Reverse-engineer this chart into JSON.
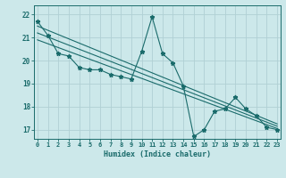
{
  "title": "",
  "xlabel": "Humidex (Indice chaleur)",
  "ylabel": "",
  "background_color": "#cce8ea",
  "grid_color": "#b0d0d4",
  "line_color": "#1a6b6b",
  "x_ticks": [
    0,
    1,
    2,
    3,
    4,
    5,
    6,
    7,
    8,
    9,
    10,
    11,
    12,
    13,
    14,
    15,
    16,
    17,
    18,
    19,
    20,
    21,
    22,
    23
  ],
  "y_ticks": [
    17,
    18,
    19,
    20,
    21,
    22
  ],
  "ylim": [
    16.6,
    22.4
  ],
  "xlim": [
    -0.3,
    23.3
  ],
  "series1": [
    21.7,
    21.1,
    20.3,
    20.2,
    19.7,
    19.6,
    19.6,
    19.4,
    19.3,
    19.2,
    20.4,
    21.9,
    20.3,
    19.9,
    18.9,
    16.7,
    17.0,
    17.8,
    17.9,
    18.4,
    17.9,
    17.6,
    17.1,
    17.0
  ],
  "trend1_x": [
    0,
    23
  ],
  "trend1_y": [
    21.5,
    17.25
  ],
  "trend2_x": [
    0,
    23
  ],
  "trend2_y": [
    20.9,
    17.05
  ],
  "trend3_x": [
    0,
    23
  ],
  "trend3_y": [
    21.2,
    17.15
  ]
}
